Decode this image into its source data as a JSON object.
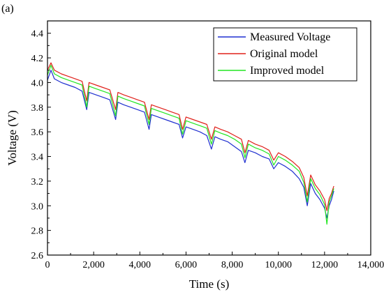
{
  "panel_label": "(a)",
  "chart_data": {
    "type": "line",
    "xlabel": "Time (s)",
    "ylabel": "Voltage (V)",
    "xlim": [
      0,
      14000
    ],
    "ylim": [
      2.6,
      4.5
    ],
    "x_ticks": [
      0,
      2000,
      4000,
      6000,
      8000,
      10000,
      12000,
      14000
    ],
    "x_tick_labels": [
      "0",
      "2,000",
      "4,000",
      "6,000",
      "8,000",
      "10,000",
      "12,000",
      "14,000"
    ],
    "y_ticks": [
      2.6,
      2.8,
      3.0,
      3.2,
      3.4,
      3.6,
      3.8,
      4.0,
      4.2,
      4.4
    ],
    "y_tick_labels": [
      "2.6",
      "2.8",
      "3.0",
      "3.2",
      "3.4",
      "3.6",
      "3.8",
      "4.0",
      "4.2",
      "4.4"
    ],
    "grid": false,
    "legend_position": "top-right",
    "series": [
      {
        "name": "Measured Voltage",
        "color": "#1f2fd0",
        "x": [
          0,
          150,
          300,
          600,
          900,
          1200,
          1500,
          1700,
          1800,
          2100,
          2400,
          2700,
          2950,
          3050,
          3300,
          3600,
          3900,
          4200,
          4400,
          4500,
          4800,
          5100,
          5400,
          5700,
          5850,
          6000,
          6300,
          6600,
          6900,
          7100,
          7250,
          7500,
          7800,
          8100,
          8400,
          8550,
          8700,
          9000,
          9300,
          9600,
          9800,
          10000,
          10300,
          10600,
          10900,
          11100,
          11250,
          11400,
          11600,
          11800,
          12000,
          12100,
          12200,
          12300,
          12400
        ],
        "y": [
          4.02,
          4.1,
          4.03,
          4.0,
          3.98,
          3.96,
          3.93,
          3.78,
          3.92,
          3.9,
          3.88,
          3.86,
          3.7,
          3.84,
          3.82,
          3.8,
          3.78,
          3.76,
          3.62,
          3.74,
          3.72,
          3.7,
          3.68,
          3.66,
          3.55,
          3.64,
          3.62,
          3.6,
          3.57,
          3.46,
          3.56,
          3.54,
          3.52,
          3.48,
          3.44,
          3.35,
          3.45,
          3.43,
          3.4,
          3.38,
          3.3,
          3.35,
          3.32,
          3.28,
          3.22,
          3.15,
          3.0,
          3.18,
          3.1,
          3.05,
          2.98,
          2.9,
          3.0,
          3.05,
          3.12
        ]
      },
      {
        "name": "Original model",
        "color": "#e0201a",
        "x": [
          0,
          150,
          300,
          600,
          900,
          1200,
          1500,
          1700,
          1800,
          2100,
          2400,
          2700,
          2950,
          3050,
          3300,
          3600,
          3900,
          4200,
          4400,
          4500,
          4800,
          5100,
          5400,
          5700,
          5850,
          6000,
          6300,
          6600,
          6900,
          7100,
          7250,
          7500,
          7800,
          8100,
          8400,
          8550,
          8700,
          9000,
          9300,
          9600,
          9800,
          10000,
          10300,
          10600,
          10900,
          11100,
          11250,
          11400,
          11600,
          11800,
          12000,
          12100,
          12200,
          12300,
          12400
        ],
        "y": [
          4.1,
          4.16,
          4.1,
          4.07,
          4.05,
          4.03,
          4.01,
          3.85,
          4.0,
          3.98,
          3.96,
          3.94,
          3.78,
          3.92,
          3.9,
          3.88,
          3.86,
          3.84,
          3.7,
          3.82,
          3.8,
          3.78,
          3.76,
          3.74,
          3.62,
          3.72,
          3.7,
          3.68,
          3.66,
          3.54,
          3.64,
          3.62,
          3.6,
          3.57,
          3.54,
          3.43,
          3.53,
          3.5,
          3.48,
          3.45,
          3.37,
          3.43,
          3.4,
          3.36,
          3.31,
          3.23,
          3.08,
          3.25,
          3.17,
          3.12,
          3.05,
          2.96,
          3.06,
          3.1,
          3.16
        ]
      },
      {
        "name": "Improved model",
        "color": "#22e622",
        "x": [
          0,
          150,
          300,
          600,
          900,
          1200,
          1500,
          1700,
          1800,
          2100,
          2400,
          2700,
          2950,
          3050,
          3300,
          3600,
          3900,
          4200,
          4400,
          4500,
          4800,
          5100,
          5400,
          5700,
          5850,
          6000,
          6300,
          6600,
          6900,
          7100,
          7250,
          7500,
          7800,
          8100,
          8400,
          8550,
          8700,
          9000,
          9300,
          9600,
          9800,
          10000,
          10300,
          10600,
          10900,
          11100,
          11250,
          11400,
          11600,
          11800,
          12000,
          12100,
          12200,
          12300,
          12400
        ],
        "y": [
          4.06,
          4.14,
          4.07,
          4.04,
          4.02,
          4.0,
          3.98,
          3.8,
          3.97,
          3.95,
          3.93,
          3.91,
          3.73,
          3.89,
          3.87,
          3.85,
          3.83,
          3.81,
          3.66,
          3.79,
          3.77,
          3.75,
          3.73,
          3.71,
          3.58,
          3.69,
          3.67,
          3.65,
          3.63,
          3.5,
          3.61,
          3.59,
          3.57,
          3.54,
          3.5,
          3.39,
          3.5,
          3.47,
          3.45,
          3.42,
          3.33,
          3.4,
          3.37,
          3.33,
          3.28,
          3.19,
          3.03,
          3.22,
          3.14,
          3.09,
          3.01,
          2.85,
          3.03,
          3.08,
          3.14
        ]
      }
    ]
  }
}
